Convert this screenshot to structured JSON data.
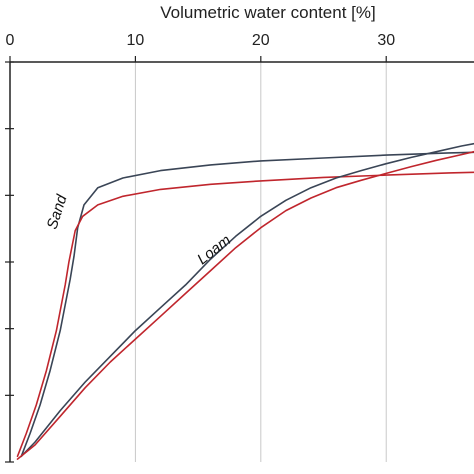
{
  "chart_data": {
    "type": "line",
    "xlabel": "Volumetric water content [%]",
    "xlim": [
      0,
      37
    ],
    "x_ticks": [
      0,
      10,
      20,
      30
    ],
    "ylim": [
      0,
      7
    ],
    "y_tick_count": 7,
    "grid": "vertical",
    "x_axis_position": "top",
    "annotations": [
      {
        "text": "Sand",
        "x": 4.1,
        "y": 4.35,
        "rotate": -72
      },
      {
        "text": "Loam",
        "x": 16.5,
        "y": 3.65,
        "rotate": -38
      }
    ],
    "series": [
      {
        "color": "#3a4556",
        "points": [
          [
            0.9,
            0.1
          ],
          [
            1.6,
            0.5
          ],
          [
            2.4,
            1
          ],
          [
            3.2,
            1.6
          ],
          [
            4,
            2.3
          ],
          [
            4.8,
            3.2
          ],
          [
            5.1,
            3.6
          ],
          [
            5.4,
            4.1
          ],
          [
            5.9,
            4.5
          ],
          [
            7,
            4.8
          ],
          [
            9,
            4.97
          ],
          [
            12,
            5.1
          ],
          [
            16,
            5.2
          ],
          [
            20,
            5.27
          ],
          [
            25,
            5.32
          ],
          [
            30,
            5.37
          ],
          [
            35,
            5.41
          ],
          [
            37,
            5.42
          ]
        ]
      },
      {
        "color": "#c0262d",
        "points": [
          [
            0.6,
            0.1
          ],
          [
            1.3,
            0.5
          ],
          [
            2.1,
            1
          ],
          [
            2.9,
            1.6
          ],
          [
            3.7,
            2.3
          ],
          [
            4.4,
            3.1
          ],
          [
            4.7,
            3.5
          ],
          [
            5.2,
            4.05
          ],
          [
            5.8,
            4.3
          ],
          [
            7,
            4.5
          ],
          [
            9,
            4.65
          ],
          [
            12,
            4.77
          ],
          [
            16,
            4.86
          ],
          [
            20,
            4.92
          ],
          [
            25,
            4.98
          ],
          [
            30,
            5.02
          ],
          [
            35,
            5.06
          ],
          [
            37,
            5.07
          ]
        ]
      },
      {
        "color": "#3a4556",
        "points": [
          [
            0.9,
            0.1
          ],
          [
            2,
            0.35
          ],
          [
            4,
            0.9
          ],
          [
            6,
            1.4
          ],
          [
            8,
            1.85
          ],
          [
            10,
            2.3
          ],
          [
            12,
            2.7
          ],
          [
            14,
            3.1
          ],
          [
            16,
            3.55
          ],
          [
            18,
            3.95
          ],
          [
            20,
            4.3
          ],
          [
            22,
            4.58
          ],
          [
            24,
            4.8
          ],
          [
            26,
            4.97
          ],
          [
            28,
            5.1
          ],
          [
            30,
            5.22
          ],
          [
            32,
            5.33
          ],
          [
            34,
            5.43
          ],
          [
            36,
            5.53
          ],
          [
            37,
            5.57
          ]
        ]
      },
      {
        "color": "#c0262d",
        "points": [
          [
            0.6,
            0.05
          ],
          [
            2,
            0.3
          ],
          [
            4,
            0.8
          ],
          [
            6,
            1.3
          ],
          [
            8,
            1.75
          ],
          [
            10,
            2.15
          ],
          [
            12,
            2.55
          ],
          [
            14,
            2.95
          ],
          [
            16,
            3.35
          ],
          [
            18,
            3.75
          ],
          [
            20,
            4.1
          ],
          [
            22,
            4.4
          ],
          [
            24,
            4.62
          ],
          [
            26,
            4.8
          ],
          [
            28,
            4.93
          ],
          [
            30,
            5.05
          ],
          [
            32,
            5.17
          ],
          [
            34,
            5.28
          ],
          [
            36,
            5.38
          ],
          [
            37,
            5.43
          ]
        ]
      }
    ]
  }
}
